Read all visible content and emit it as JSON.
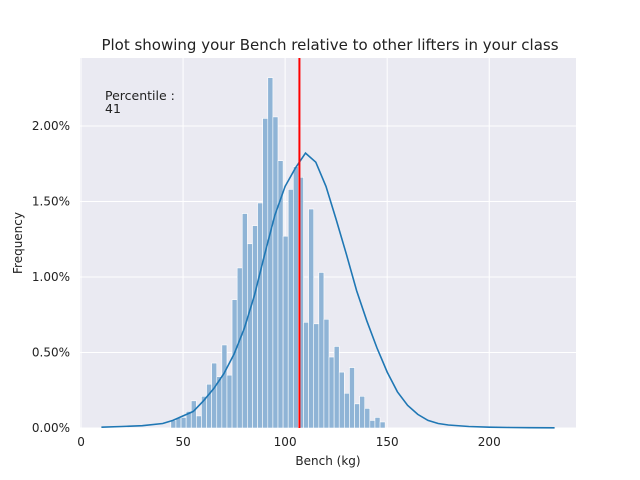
{
  "chart_data": {
    "type": "histogram",
    "title": "Plot showing your Bench relative to other lifters in your class",
    "xlabel": "Bench (kg)",
    "ylabel": "Frequency",
    "xlim": [
      -0.5,
      242.5
    ],
    "ylim": [
      0,
      0.0245
    ],
    "x_ticks": [
      0,
      50,
      100,
      150,
      200
    ],
    "y_ticks": [
      0,
      0.005,
      0.01,
      0.015,
      0.02
    ],
    "y_tick_labels": [
      "0.00%",
      "0.50%",
      "1.00%",
      "1.50%",
      "2.00%"
    ],
    "grid": true,
    "background": "#eaeaf2",
    "bar_color": "#8fb4d6",
    "kde_color": "#1f77b4",
    "marker_color": "#ff0000",
    "marker_value": 107,
    "annotation_lines": [
      "Percentile :",
      "41"
    ],
    "bins": {
      "start": 44,
      "width": 2.5,
      "values": [
        0.0005,
        0.0007,
        0.0007,
        0.0011,
        0.0018,
        0.0008,
        0.0021,
        0.0029,
        0.0043,
        0.0034,
        0.0055,
        0.0035,
        0.0085,
        0.0106,
        0.0142,
        0.0122,
        0.0134,
        0.0149,
        0.0205,
        0.0232,
        0.0206,
        0.0177,
        0.0127,
        0.0158,
        0.0173,
        0.0166,
        0.007,
        0.0145,
        0.0069,
        0.0103,
        0.0072,
        0.0047,
        0.0054,
        0.0037,
        0.0023,
        0.004,
        0.0016,
        0.0021,
        0.0013,
        0.0005,
        0.0007,
        0.0004
      ]
    },
    "kde": {
      "x": [
        10,
        20,
        30,
        40,
        45,
        50,
        55,
        60,
        65,
        70,
        75,
        80,
        85,
        90,
        95,
        100,
        105,
        110,
        115,
        120,
        125,
        130,
        135,
        140,
        145,
        150,
        155,
        160,
        165,
        170,
        175,
        180,
        190,
        200,
        210,
        220,
        232
      ],
      "y": [
        5e-05,
        0.0001,
        0.00015,
        0.0003,
        0.0005,
        0.0008,
        0.0011,
        0.0018,
        0.0026,
        0.0036,
        0.0049,
        0.0066,
        0.0088,
        0.0115,
        0.0141,
        0.016,
        0.0172,
        0.0182,
        0.0176,
        0.016,
        0.0138,
        0.0115,
        0.0091,
        0.0071,
        0.0053,
        0.0037,
        0.0024,
        0.0015,
        0.0009,
        0.0005,
        0.0003,
        0.0002,
        0.0001,
        5e-05,
        3e-05,
        2e-05,
        1e-05
      ]
    }
  }
}
